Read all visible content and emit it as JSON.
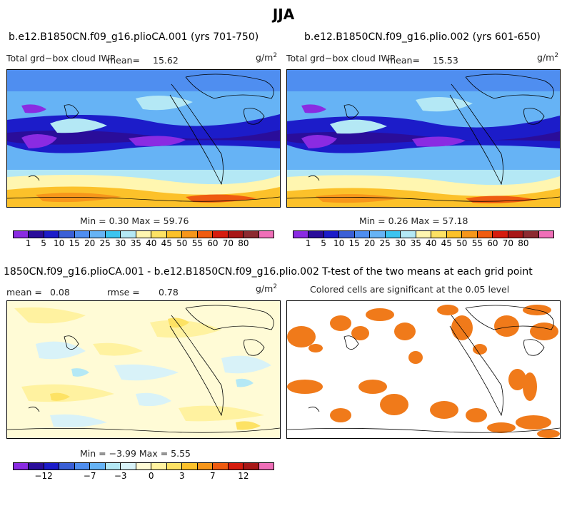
{
  "figure": {
    "title": "JJA"
  },
  "panels": [
    {
      "id": "p1",
      "title": "b.e12.B1850CN.f09_g16.plioCA.001 (yrs 701-750)",
      "var_label": "Total grd−box cloud IWP",
      "mean_label": "mean=",
      "mean_value": "15.62",
      "units_base": "g/m",
      "units_exp": "2",
      "minmax": "Min =   0.30 Max =  59.76"
    },
    {
      "id": "p2",
      "title": "b.e12.B1850CN.f09_g16.plio.002 (yrs 601-650)",
      "var_label": "Total grd−box cloud IWP",
      "mean_label": "mean=",
      "mean_value": "15.53",
      "units_base": "g/m",
      "units_exp": "2",
      "minmax": "Min =   0.26 Max =  57.18"
    },
    {
      "id": "p3",
      "title": "1850CN.f09_g16.plioCA.001 - b.e12.B1850CN.f09_g16.plio.002",
      "mean_label": "mean =",
      "mean_value": "0.08",
      "rmse_label": "rmse =",
      "rmse_value": "0.78",
      "units_base": "g/m",
      "units_exp": "2",
      "minmax": "Min =  −3.99 Max =   5.55"
    },
    {
      "id": "p4",
      "title": "T-test of the two means at each grid point",
      "subtitle": "Colored cells are significant at the 0.05 level"
    }
  ],
  "colorbar_abs": {
    "colors": [
      "#8a2be2",
      "#2a0d9a",
      "#1c1cc9",
      "#3a5fd6",
      "#4f8ef0",
      "#66b3f5",
      "#3cc4f0",
      "#b4e8f5",
      "#fff6b0",
      "#fde264",
      "#fcc12a",
      "#f7961a",
      "#ef5b10",
      "#d61c0e",
      "#a81818",
      "#8c2a30",
      "#ef6fb8"
    ],
    "tick_labels": [
      "1",
      "5",
      "10",
      "15",
      "20",
      "25",
      "30",
      "35",
      "40",
      "45",
      "50",
      "55",
      "60",
      "70",
      "80"
    ]
  },
  "colorbar_diff": {
    "colors": [
      "#8a2be2",
      "#2a0d9a",
      "#1c1cc9",
      "#3a5fd6",
      "#4f8ef0",
      "#66b3f5",
      "#b4e8f5",
      "#d8f2f8",
      "#fffbd6",
      "#fff2a0",
      "#fde264",
      "#fcc12a",
      "#f7961a",
      "#ef5b10",
      "#d61c0e",
      "#a81818",
      "#ef6fb8"
    ],
    "tick_labels": [
      "−12",
      "−7",
      "−3",
      "0",
      "3",
      "7",
      "12"
    ]
  },
  "significance_color": "#f07a1a"
}
